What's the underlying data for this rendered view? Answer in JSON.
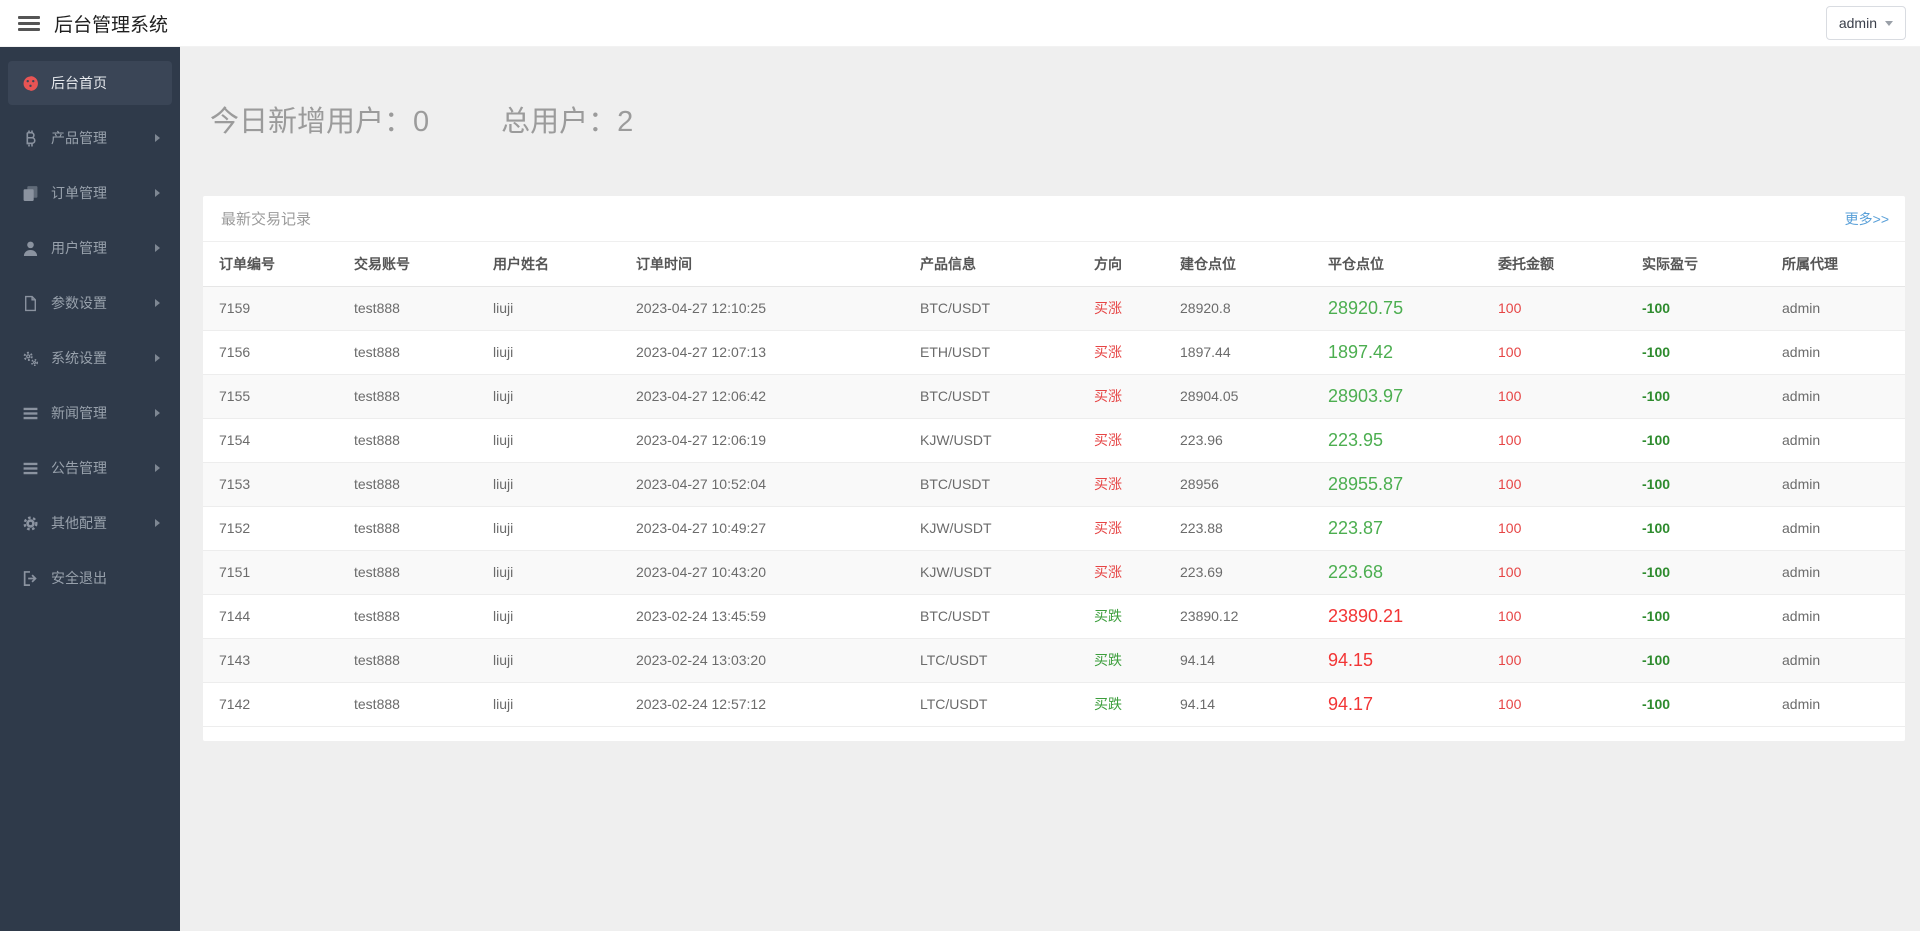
{
  "header": {
    "title": "后台管理系统",
    "user_menu_label": "admin"
  },
  "sidebar": {
    "items": [
      {
        "label": "后台首页",
        "icon": "dashboard-icon",
        "active": true,
        "expandable": false
      },
      {
        "label": "产品管理",
        "icon": "bitcoin-icon",
        "active": false,
        "expandable": true
      },
      {
        "label": "订单管理",
        "icon": "copy-icon",
        "active": false,
        "expandable": true
      },
      {
        "label": "用户管理",
        "icon": "user-icon",
        "active": false,
        "expandable": true
      },
      {
        "label": "参数设置",
        "icon": "file-icon",
        "active": false,
        "expandable": true
      },
      {
        "label": "系统设置",
        "icon": "gears-icon",
        "active": false,
        "expandable": true
      },
      {
        "label": "新闻管理",
        "icon": "list-icon",
        "active": false,
        "expandable": true
      },
      {
        "label": "公告管理",
        "icon": "list-icon",
        "active": false,
        "expandable": true
      },
      {
        "label": "其他配置",
        "icon": "gear-icon",
        "active": false,
        "expandable": true
      },
      {
        "label": "安全退出",
        "icon": "signout-icon",
        "active": false,
        "expandable": false
      }
    ]
  },
  "stats": {
    "new_users_label": "今日新增用户：",
    "new_users_value": "0",
    "total_users_label": "总用户：",
    "total_users_value": "2"
  },
  "panel": {
    "title": "最新交易记录",
    "more_link": "更多>>",
    "table": {
      "columns": [
        "订单编号",
        "交易账号",
        "用户姓名",
        "订单时间",
        "产品信息",
        "方向",
        "建仓点位",
        "平仓点位",
        "委托金额",
        "实际盈亏",
        "所属代理"
      ],
      "rows": [
        {
          "order_id": "7159",
          "account": "test888",
          "name": "liuji",
          "time": "2023-04-27 12:10:25",
          "product": "BTC/USDT",
          "direction": "买涨",
          "direction_trend": "up",
          "open": "28920.8",
          "close": "28920.75",
          "close_trend": "up",
          "amount": "100",
          "pnl": "-100",
          "agent": "admin"
        },
        {
          "order_id": "7156",
          "account": "test888",
          "name": "liuji",
          "time": "2023-04-27 12:07:13",
          "product": "ETH/USDT",
          "direction": "买涨",
          "direction_trend": "up",
          "open": "1897.44",
          "close": "1897.42",
          "close_trend": "up",
          "amount": "100",
          "pnl": "-100",
          "agent": "admin"
        },
        {
          "order_id": "7155",
          "account": "test888",
          "name": "liuji",
          "time": "2023-04-27 12:06:42",
          "product": "BTC/USDT",
          "direction": "买涨",
          "direction_trend": "up",
          "open": "28904.05",
          "close": "28903.97",
          "close_trend": "up",
          "amount": "100",
          "pnl": "-100",
          "agent": "admin"
        },
        {
          "order_id": "7154",
          "account": "test888",
          "name": "liuji",
          "time": "2023-04-27 12:06:19",
          "product": "KJW/USDT",
          "direction": "买涨",
          "direction_trend": "up",
          "open": "223.96",
          "close": "223.95",
          "close_trend": "up",
          "amount": "100",
          "pnl": "-100",
          "agent": "admin"
        },
        {
          "order_id": "7153",
          "account": "test888",
          "name": "liuji",
          "time": "2023-04-27 10:52:04",
          "product": "BTC/USDT",
          "direction": "买涨",
          "direction_trend": "up",
          "open": "28956",
          "close": "28955.87",
          "close_trend": "up",
          "amount": "100",
          "pnl": "-100",
          "agent": "admin"
        },
        {
          "order_id": "7152",
          "account": "test888",
          "name": "liuji",
          "time": "2023-04-27 10:49:27",
          "product": "KJW/USDT",
          "direction": "买涨",
          "direction_trend": "up",
          "open": "223.88",
          "close": "223.87",
          "close_trend": "up",
          "amount": "100",
          "pnl": "-100",
          "agent": "admin"
        },
        {
          "order_id": "7151",
          "account": "test888",
          "name": "liuji",
          "time": "2023-04-27 10:43:20",
          "product": "KJW/USDT",
          "direction": "买涨",
          "direction_trend": "up",
          "open": "223.69",
          "close": "223.68",
          "close_trend": "up",
          "amount": "100",
          "pnl": "-100",
          "agent": "admin"
        },
        {
          "order_id": "7144",
          "account": "test888",
          "name": "liuji",
          "time": "2023-02-24 13:45:59",
          "product": "BTC/USDT",
          "direction": "买跌",
          "direction_trend": "down",
          "open": "23890.12",
          "close": "23890.21",
          "close_trend": "down",
          "amount": "100",
          "pnl": "-100",
          "agent": "admin"
        },
        {
          "order_id": "7143",
          "account": "test888",
          "name": "liuji",
          "time": "2023-02-24 13:03:20",
          "product": "LTC/USDT",
          "direction": "买跌",
          "direction_trend": "down",
          "open": "94.14",
          "close": "94.15",
          "close_trend": "down",
          "amount": "100",
          "pnl": "-100",
          "agent": "admin"
        },
        {
          "order_id": "7142",
          "account": "test888",
          "name": "liuji",
          "time": "2023-02-24 12:57:12",
          "product": "LTC/USDT",
          "direction": "买跌",
          "direction_trend": "down",
          "open": "94.14",
          "close": "94.17",
          "close_trend": "down",
          "amount": "100",
          "pnl": "-100",
          "agent": "admin"
        }
      ]
    }
  },
  "colors": {
    "sidebar_bg": "#2f3a4a",
    "accent_icon": "#e85454",
    "direction_up": "#e64545",
    "direction_down": "#3c9e3c",
    "close_up": "#4cae50",
    "close_down": "#f23535",
    "amount": "#e64545",
    "pnl": "#2e8b2e",
    "link": "#5aa0d8"
  }
}
